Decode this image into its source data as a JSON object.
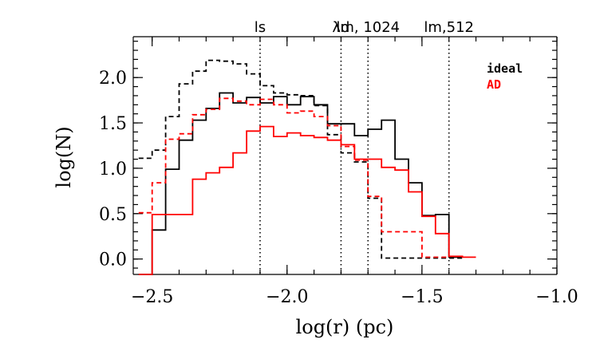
{
  "chart_data": {
    "type": "line",
    "xlabel": "log(r) (pc)",
    "ylabel": "log(N)",
    "xlim": [
      -2.57,
      -1.0
    ],
    "ylim": [
      -0.17,
      2.45
    ],
    "x_ticks": [
      -2.5,
      -2.0,
      -1.5,
      -1.0
    ],
    "x_tick_labels": [
      "−2.5",
      "−2.0",
      "−1.5",
      "−1.0"
    ],
    "y_ticks": [
      0.0,
      0.5,
      1.0,
      1.5,
      2.0
    ],
    "y_tick_labels": [
      "0.0",
      "0.5",
      "1.0",
      "1.5",
      "2.0"
    ],
    "markers": [
      {
        "label": "ls",
        "x": -2.1
      },
      {
        "label": "λd",
        "x": -1.8
      },
      {
        "label": "lm, 1024",
        "x": -1.7
      },
      {
        "label": "lm,512",
        "x": -1.4
      }
    ],
    "legend": [
      {
        "label": "ideal",
        "color": "#000000"
      },
      {
        "label": "AD",
        "color": "#ff0000"
      }
    ],
    "series": [
      {
        "name": "ideal",
        "style": "solid",
        "color": "#000000",
        "edges": [
          -2.55,
          -2.5,
          -2.45,
          -2.4,
          -2.35,
          -2.3,
          -2.25,
          -2.2,
          -2.15,
          -2.1,
          -2.05,
          -2.0,
          -1.95,
          -1.9,
          -1.85,
          -1.8,
          -1.75,
          -1.7,
          -1.65,
          -1.6,
          -1.55,
          -1.5,
          -1.45,
          -1.4,
          -1.35
        ],
        "values": [
          -0.17,
          0.32,
          0.99,
          1.31,
          1.53,
          1.66,
          1.83,
          1.72,
          1.78,
          1.72,
          1.79,
          1.7,
          1.79,
          1.7,
          1.49,
          1.49,
          1.36,
          1.43,
          1.53,
          1.1,
          0.84,
          0.48,
          0.49,
          0.02
        ]
      },
      {
        "name": "ideal (dashed)",
        "style": "dashed",
        "color": "#000000",
        "edges": [
          -2.55,
          -2.5,
          -2.45,
          -2.4,
          -2.35,
          -2.3,
          -2.25,
          -2.2,
          -2.15,
          -2.1,
          -2.05,
          -2.0,
          -1.95,
          -1.9,
          -1.85,
          -1.8,
          -1.75,
          -1.7,
          -1.65,
          -1.6,
          -1.55,
          -1.5,
          -1.45,
          -1.4,
          -1.35
        ],
        "values": [
          1.11,
          1.2,
          1.57,
          1.93,
          2.07,
          2.19,
          2.18,
          2.15,
          2.04,
          1.91,
          1.83,
          1.81,
          1.8,
          1.69,
          1.37,
          1.17,
          1.07,
          0.67,
          0.01,
          0.01,
          0.01,
          0.01,
          0.01,
          0.01
        ]
      },
      {
        "name": "AD",
        "style": "solid",
        "color": "#ff0000",
        "edges": [
          -2.55,
          -2.5,
          -2.45,
          -2.4,
          -2.35,
          -2.3,
          -2.25,
          -2.2,
          -2.15,
          -2.1,
          -2.05,
          -2.0,
          -1.95,
          -1.9,
          -1.85,
          -1.8,
          -1.75,
          -1.7,
          -1.65,
          -1.6,
          -1.55,
          -1.5,
          -1.45,
          -1.4,
          -1.35,
          -1.3
        ],
        "values": [
          -0.17,
          0.49,
          0.49,
          0.49,
          0.88,
          0.95,
          1.01,
          1.17,
          1.41,
          1.46,
          1.35,
          1.39,
          1.36,
          1.34,
          1.31,
          1.26,
          1.1,
          1.1,
          1.01,
          0.98,
          0.74,
          0.47,
          0.28,
          0.03,
          0.02
        ]
      },
      {
        "name": "AD (dashed)",
        "style": "dashed",
        "color": "#ff0000",
        "edges": [
          -2.55,
          -2.5,
          -2.45,
          -2.4,
          -2.35,
          -2.3,
          -2.25,
          -2.2,
          -2.15,
          -2.1,
          -2.05,
          -2.0,
          -1.95,
          -1.9,
          -1.85,
          -1.8,
          -1.75,
          -1.7,
          -1.65,
          -1.6,
          -1.55,
          -1.5,
          -1.45,
          -1.4
        ],
        "values": [
          0.51,
          0.84,
          1.32,
          1.38,
          1.59,
          1.65,
          1.77,
          1.74,
          1.7,
          1.76,
          1.7,
          1.61,
          1.63,
          1.57,
          1.47,
          1.24,
          1.09,
          0.69,
          0.3,
          0.3,
          0.3,
          0.02,
          0.02
        ]
      }
    ]
  }
}
